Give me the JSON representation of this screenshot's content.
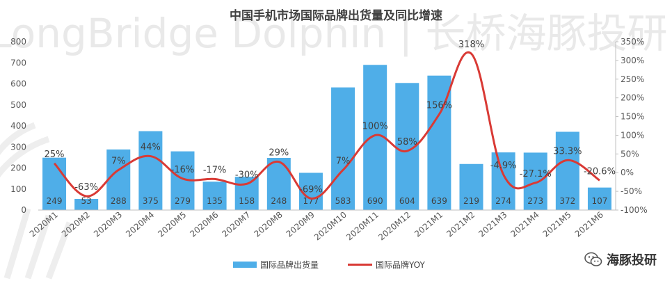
{
  "watermark": {
    "text": "LongBridge Dolphin | 长桥海豚投研"
  },
  "brand": {
    "text": "海豚投研",
    "icon": "wechat-icon"
  },
  "colors": {
    "bar": "#4FAEE8",
    "line": "#D93A35",
    "axis": "#595959",
    "bar_label": "#404040",
    "line_label": "#404040"
  },
  "chart_data": {
    "type": "bar",
    "title": "中国手机市场国际品牌出货量及同比增速",
    "categories": [
      "2020M1",
      "2020M2",
      "2020M3",
      "2020M4",
      "2020M5",
      "2020M6",
      "2020M7",
      "2020M8",
      "2020M9",
      "2020M10",
      "2020M11",
      "2020M12",
      "2021M1",
      "2021M2",
      "2021M3",
      "2021M4",
      "2021M5",
      "2021M6"
    ],
    "series": [
      {
        "name": "国际品牌出货量",
        "type": "bar",
        "axis": "left",
        "values": [
          249,
          53,
          288,
          375,
          279,
          135,
          158,
          248,
          177,
          583,
          690,
          604,
          639,
          219,
          274,
          273,
          372,
          107
        ],
        "labels": [
          "249",
          "53",
          "288",
          "375",
          "279",
          "135",
          "158",
          "248",
          "177",
          "583",
          "690",
          "604",
          "639",
          "219",
          "274",
          "273",
          "372",
          "107"
        ]
      },
      {
        "name": "国际品牌YOY",
        "type": "line",
        "axis": "right",
        "values": [
          25,
          -63,
          7,
          44,
          -16,
          -17,
          -30,
          29,
          -69,
          7,
          100,
          58,
          156,
          318,
          -4.9,
          -27.1,
          33.3,
          -20.6
        ],
        "labels": [
          "25%",
          "-63%",
          "7%",
          "44%",
          "-16%",
          "-17%",
          "-30%",
          "29%",
          "-69%",
          "7%",
          "100%",
          "58%",
          "156%",
          "318%",
          "-4.9%",
          "-27.1%",
          "33.3%",
          "-20.6%"
        ]
      }
    ],
    "y_left": {
      "min": 0,
      "max": 800,
      "ticks": [
        "0",
        "100",
        "200",
        "300",
        "400",
        "500",
        "600",
        "700",
        "800"
      ]
    },
    "y_right": {
      "min": -100,
      "max": 350,
      "ticks": [
        "-100%",
        "-50%",
        "0%",
        "50%",
        "100%",
        "150%",
        "200%",
        "250%",
        "300%",
        "350%"
      ]
    },
    "legend": {
      "position": "bottom",
      "items": [
        "国际品牌出货量",
        "国际品牌YOY"
      ]
    },
    "grid": false
  }
}
